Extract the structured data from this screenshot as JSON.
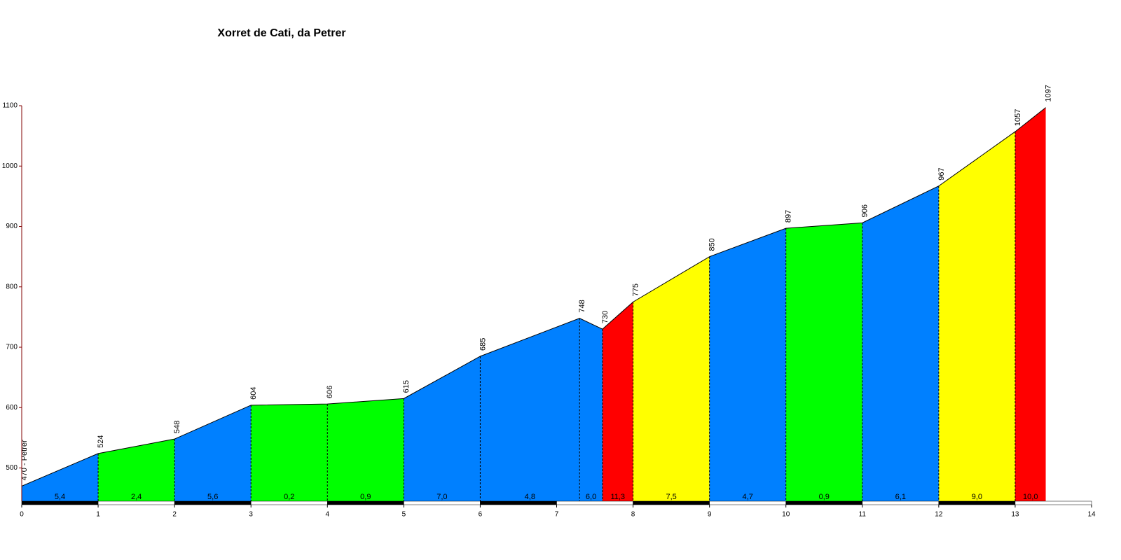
{
  "chart_data": {
    "type": "area",
    "title": "Xorret de Cati, da Petrer",
    "x": [
      0,
      1,
      2,
      3,
      4,
      5,
      6,
      7.3,
      7.6,
      8,
      9,
      10,
      11,
      12,
      13,
      13.4
    ],
    "values": [
      470,
      524,
      548,
      604,
      606,
      615,
      685,
      748,
      730,
      775,
      850,
      897,
      906,
      967,
      1057,
      1097
    ],
    "value_labels": [
      "470 - Petrer",
      "524",
      "548",
      "604",
      "606",
      "615",
      "685",
      "748",
      "730",
      "775",
      "850",
      "897",
      "906",
      "967",
      "1057",
      "1097"
    ],
    "segments": {
      "values": [
        5.4,
        2.4,
        5.6,
        0.2,
        0.9,
        7.0,
        4.8,
        6.0,
        11.3,
        7.5,
        4.7,
        0.9,
        6.1,
        9.0,
        10.0
      ],
      "value_labels": [
        "5,4",
        "2,4",
        "5,6",
        "0,2",
        "0,9",
        "7,0",
        "4,8",
        "6,0",
        "11,3",
        "7,5",
        "4,7",
        "0,9",
        "6,1",
        "9,0",
        "10,0"
      ],
      "colors": [
        "#0080ff",
        "#00ff00",
        "#0080ff",
        "#00ff00",
        "#00ff00",
        "#0080ff",
        "#0080ff",
        "#0080ff",
        "#ff0000",
        "#ffff00",
        "#0080ff",
        "#00ff00",
        "#0080ff",
        "#ffff00",
        "#ff0000"
      ]
    },
    "xlim": [
      0,
      14
    ],
    "ylim": [
      445,
      1100
    ],
    "xticks": [
      0,
      1,
      2,
      3,
      4,
      5,
      6,
      7,
      8,
      9,
      10,
      11,
      12,
      13,
      14
    ],
    "yticks": [
      500,
      600,
      700,
      800,
      900,
      1000,
      1100
    ]
  }
}
